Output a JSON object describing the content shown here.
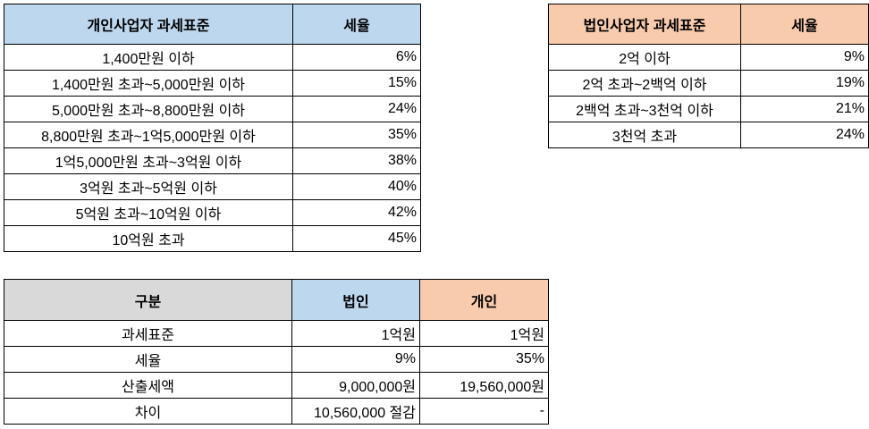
{
  "individual_table": {
    "headers": [
      "개인사업자 과세표준",
      "세율"
    ],
    "header_color": "#bdd7ee",
    "rows": [
      [
        "1,400만원 이하",
        "6%"
      ],
      [
        "1,400만원 초과~5,000만원 이하",
        "15%"
      ],
      [
        "5,000만원 초과~8,800만원 이하",
        "24%"
      ],
      [
        "8,800만원 초과~1억5,000만원 이하",
        "35%"
      ],
      [
        "1억5,000만원 초과~3억원 이하",
        "38%"
      ],
      [
        "3억원 초과~5억원 이하",
        "40%"
      ],
      [
        "5억원 초과~10억원 이하",
        "42%"
      ],
      [
        "10억원 초과",
        "45%"
      ]
    ]
  },
  "corporate_table": {
    "headers": [
      "법인사업자 과세표준",
      "세율"
    ],
    "header_color": "#f8cbad",
    "rows": [
      [
        "2억 이하",
        "9%"
      ],
      [
        "2억 초과~2백억 이하",
        "19%"
      ],
      [
        "2백억 초과~3천억 이하",
        "21%"
      ],
      [
        "3천억 초과",
        "24%"
      ]
    ]
  },
  "comparison_table": {
    "headers": [
      "구분",
      "법인",
      "개인"
    ],
    "header_colors": [
      "#d9d9d9",
      "#bdd7ee",
      "#f8cbad"
    ],
    "rows": [
      [
        "과세표준",
        "1억원",
        "1억원"
      ],
      [
        "세율",
        "9%",
        "35%"
      ],
      [
        "산출세액",
        "9,000,000원",
        "19,560,000원"
      ],
      [
        "차이",
        "10,560,000 절감",
        "-"
      ]
    ]
  }
}
